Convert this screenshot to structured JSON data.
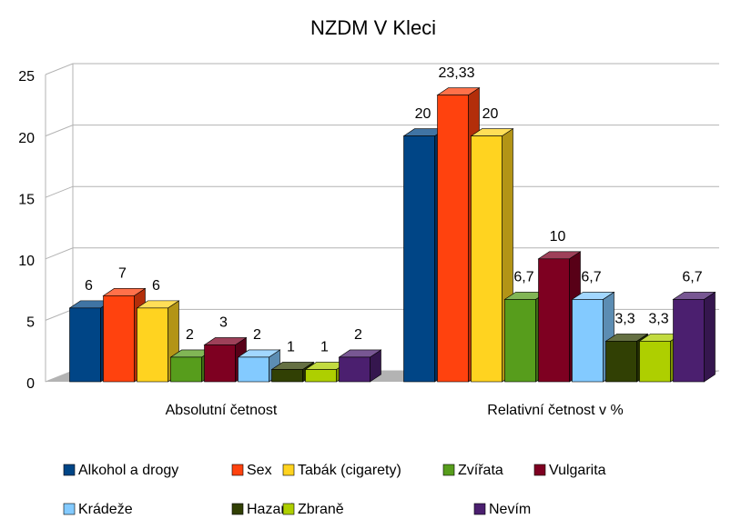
{
  "chart_data": {
    "type": "bar3d",
    "title": "NZDM V Kleci",
    "categories": [
      "Absolutní četnost",
      "Relativní četnost v %"
    ],
    "series": [
      {
        "name": "Alkohol a drogy",
        "color": "#004586",
        "values": [
          6,
          20
        ],
        "value_labels": [
          "6",
          "20"
        ]
      },
      {
        "name": "Sex",
        "color": "#ff420e",
        "values": [
          7,
          23.33
        ],
        "value_labels": [
          "7",
          "23,33"
        ]
      },
      {
        "name": "Tabák (cigarety)",
        "color": "#ffd320",
        "values": [
          6,
          20
        ],
        "value_labels": [
          "6",
          "20"
        ]
      },
      {
        "name": "Zvířata",
        "color": "#579d1c",
        "values": [
          2,
          6.7
        ],
        "value_labels": [
          "2",
          "6,7"
        ]
      },
      {
        "name": "Vulgarita",
        "color": "#7e0021",
        "values": [
          3,
          10
        ],
        "value_labels": [
          "3",
          "10"
        ]
      },
      {
        "name": "Krádeže",
        "color": "#83caff",
        "values": [
          2,
          6.7
        ],
        "value_labels": [
          "2",
          "6,7"
        ]
      },
      {
        "name": "Hazard",
        "color": "#314004",
        "values": [
          1,
          3.3
        ],
        "value_labels": [
          "1",
          "3,3"
        ]
      },
      {
        "name": "Zbraně",
        "color": "#aecf00",
        "values": [
          1,
          3.3
        ],
        "value_labels": [
          "1",
          "3,3"
        ]
      },
      {
        "name": "Nevím",
        "color": "#4b1f6f",
        "values": [
          2,
          6.7
        ],
        "value_labels": [
          "2",
          "6,7"
        ]
      }
    ],
    "ylim": [
      0,
      25
    ],
    "yticks": [
      0,
      5,
      10,
      15,
      20,
      25
    ],
    "grid": true,
    "legend": "bottom"
  }
}
